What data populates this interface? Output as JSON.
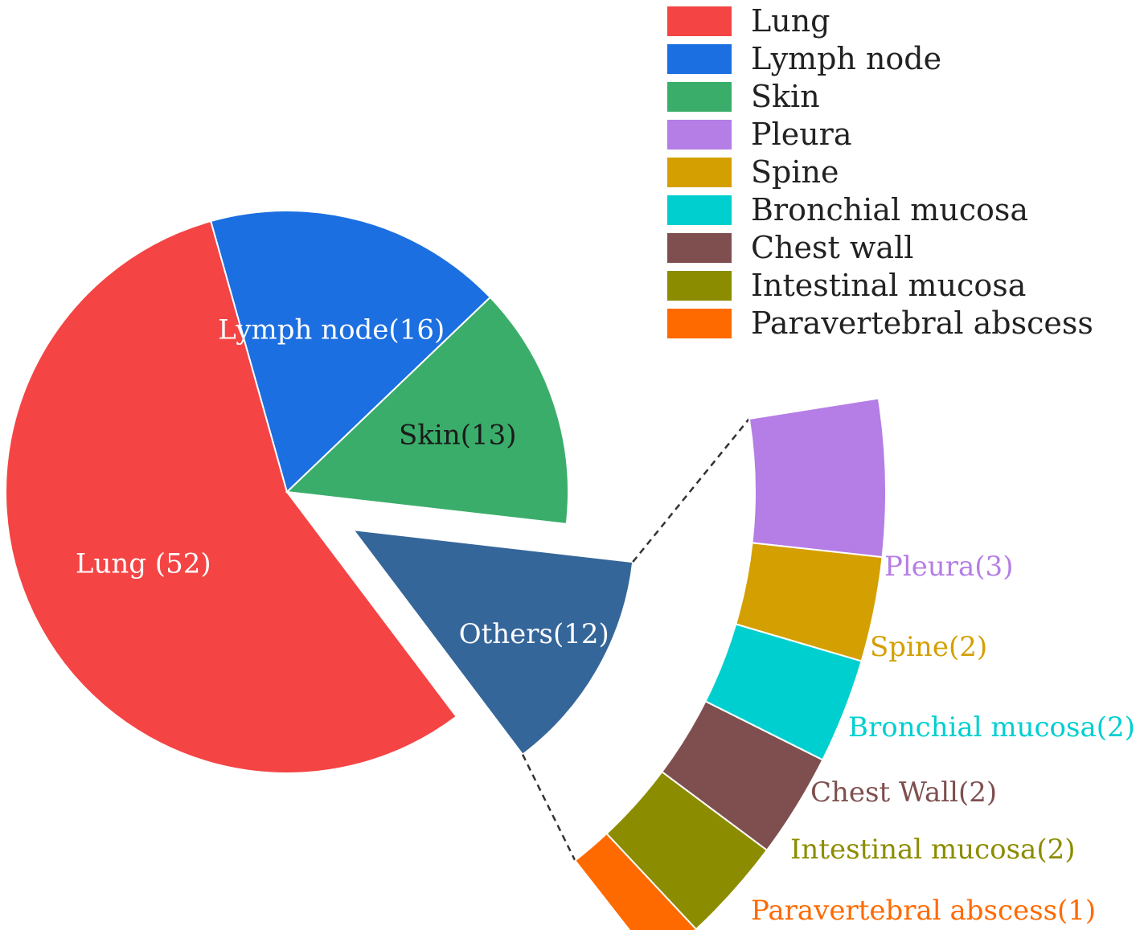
{
  "chart_data": {
    "type": "pie",
    "variant": "pie-with-breakout",
    "title": "",
    "legend": {
      "placement": "top-right",
      "entries": [
        {
          "name": "Lung",
          "color": "#f44444"
        },
        {
          "name": "Lymph node",
          "color": "#1b6fe0"
        },
        {
          "name": "Skin",
          "color": "#3aad6a"
        },
        {
          "name": "Pleura",
          "color": "#b57de6"
        },
        {
          "name": "Spine",
          "color": "#d49f00"
        },
        {
          "name": "Bronchial mucosa",
          "color": "#00cfcf"
        },
        {
          "name": "Chest wall",
          "color": "#7f4f4f"
        },
        {
          "name": "Intestinal mucosa",
          "color": "#8c8c00"
        },
        {
          "name": "Paravertebral abscess",
          "color": "#ff6a00"
        }
      ]
    },
    "main_pie": [
      {
        "label": "Lung (52)",
        "value": 52,
        "color": "#f44444",
        "label_color": "#ffffff"
      },
      {
        "label": "Lymph node(16)",
        "value": 16,
        "color": "#1b6fe0",
        "label_color": "#ffffff"
      },
      {
        "label": "Skin(13)",
        "value": 13,
        "color": "#3aad6a",
        "label_color": "#1a1a1a"
      },
      {
        "label": "Others(12)",
        "value": 12,
        "color": "#356699",
        "label_color": "#ffffff",
        "exploded": true
      }
    ],
    "breakout": [
      {
        "label": "Pleura(3)",
        "value": 3,
        "color": "#b57de6"
      },
      {
        "label": "Spine(2)",
        "value": 2,
        "color": "#d49f00"
      },
      {
        "label": "Bronchial mucosa(2)",
        "value": 2,
        "color": "#00cfcf"
      },
      {
        "label": "Chest Wall(2)",
        "value": 2,
        "color": "#7f4f4f"
      },
      {
        "label": "Intestinal mucosa(2)",
        "value": 2,
        "color": "#8c8c00"
      },
      {
        "label": "Paravertebral abscess(1)",
        "value": 1,
        "color": "#ff6a00"
      }
    ]
  }
}
